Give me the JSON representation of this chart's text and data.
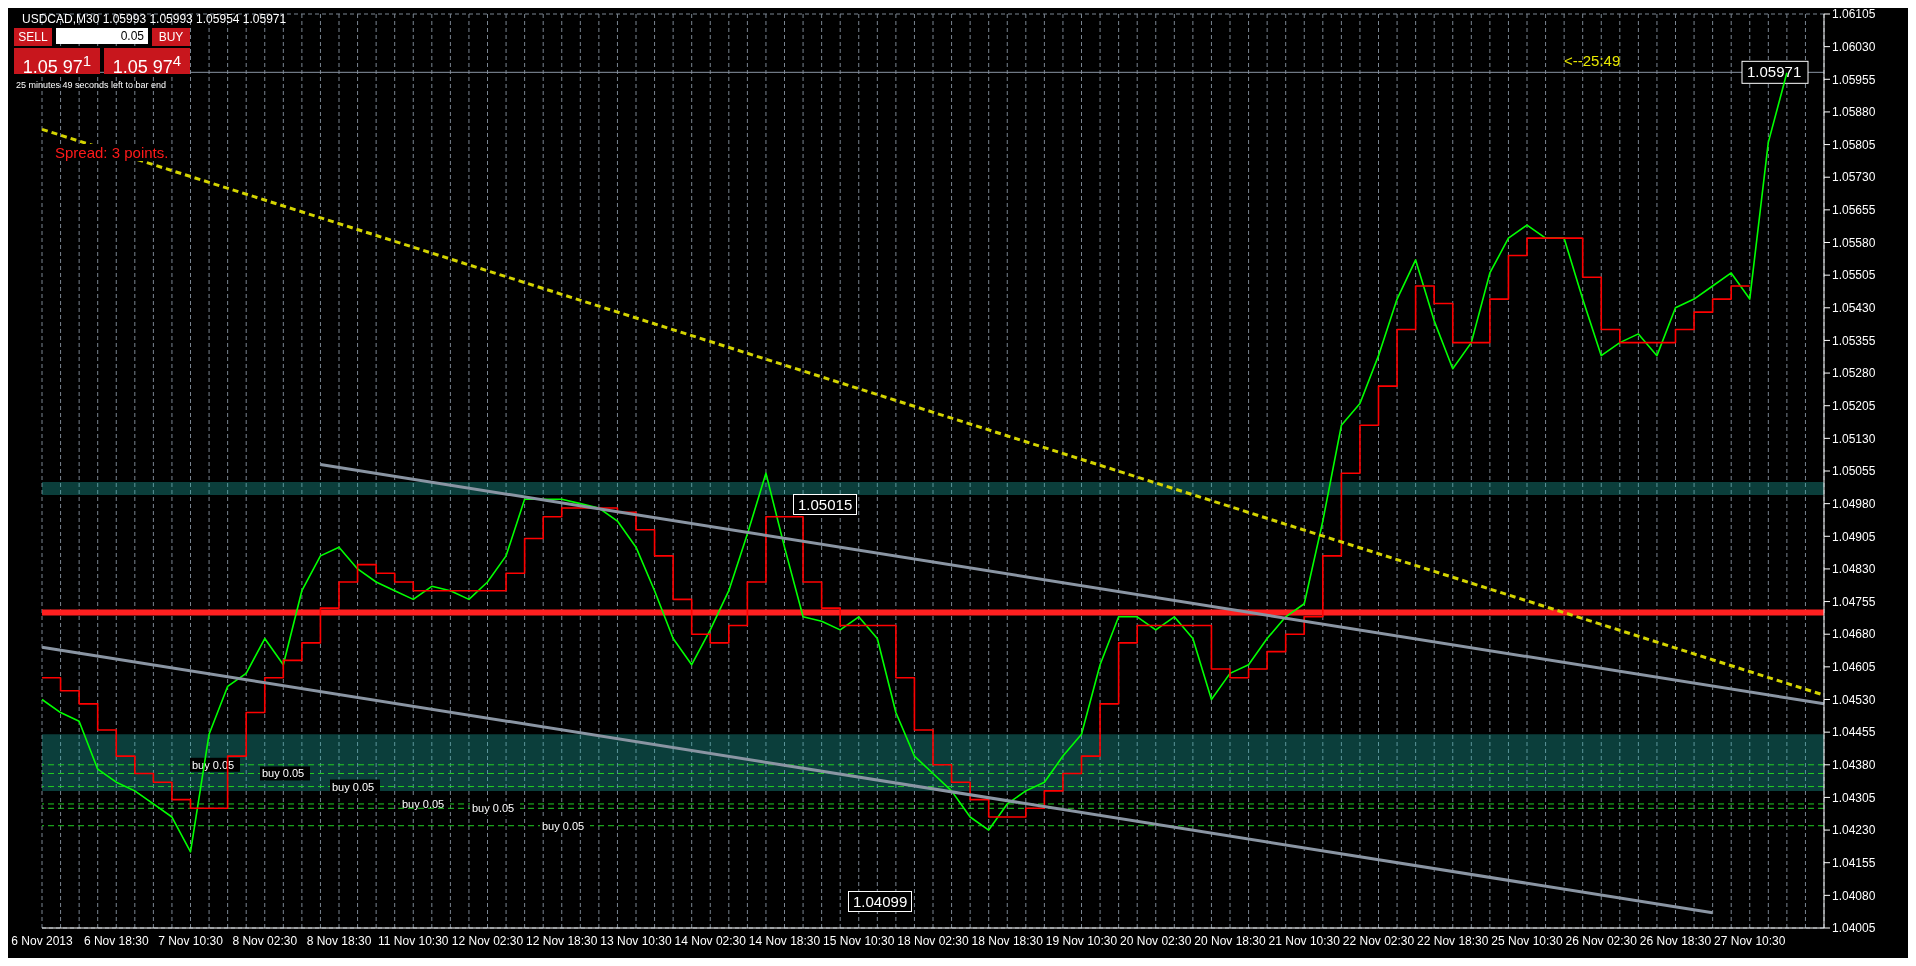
{
  "chart_data": {
    "type": "line",
    "title": "USDCAD,M30  1.05993 1.05993 1.05954 1.05971",
    "categories": [
      "6 Nov 2013",
      null,
      null,
      null,
      "6 Nov 18:30",
      null,
      null,
      null,
      "7 Nov 10:30",
      null,
      null,
      null,
      "8 Nov 02:30",
      null,
      null,
      null,
      "8 Nov 18:30",
      null,
      null,
      null,
      "11 Nov 10:30",
      null,
      null,
      null,
      "12 Nov 02:30",
      null,
      null,
      null,
      "12 Nov 18:30",
      null,
      null,
      null,
      "13 Nov 10:30",
      null,
      null,
      null,
      "14 Nov 02:30",
      null,
      null,
      null,
      "14 Nov 18:30",
      null,
      null,
      null,
      "15 Nov 10:30",
      null,
      null,
      null,
      "18 Nov 02:30",
      null,
      null,
      null,
      "18 Nov 18:30",
      null,
      null,
      null,
      "19 Nov 10:30",
      null,
      null,
      null,
      "20 Nov 02:30",
      null,
      null,
      null,
      "20 Nov 18:30",
      null,
      null,
      null,
      "21 Nov 10:30",
      null,
      null,
      null,
      "22 Nov 02:30",
      null,
      null,
      null,
      "22 Nov 18:30",
      null,
      null,
      null,
      "25 Nov 10:30",
      null,
      null,
      null,
      "26 Nov 02:30",
      null,
      null,
      null,
      "26 Nov 18:30",
      null,
      null,
      null,
      "27 Nov 10:30",
      null,
      null,
      null,
      null
    ],
    "series": [
      {
        "color": "#00ff00",
        "values": [
          1.0453,
          1.045,
          1.0448,
          1.0437,
          1.0434,
          1.0432,
          1.0429,
          1.0426,
          1.0418,
          1.0445,
          1.0456,
          1.0459,
          1.0467,
          1.0461,
          1.0478,
          1.0486,
          1.0488,
          1.0483,
          1.048,
          1.0478,
          1.0476,
          1.0479,
          1.0478,
          1.0476,
          1.048,
          1.0486,
          1.0499,
          1.0499,
          1.0499,
          1.0498,
          1.0497,
          1.0494,
          1.0488,
          1.0478,
          1.0467,
          1.0461,
          1.0469,
          1.0478,
          1.0491,
          1.0505,
          1.0488,
          1.0472,
          1.0471,
          1.0469,
          1.0472,
          1.0467,
          1.045,
          1.044,
          1.0436,
          1.0432,
          1.0426,
          1.0423,
          1.0429,
          1.0432,
          1.0434,
          1.044,
          1.0445,
          1.0461,
          1.0472,
          1.0472,
          1.0469,
          1.0472,
          1.0467,
          1.0453,
          1.0459,
          1.0461,
          1.0467,
          1.0472,
          1.0475,
          1.0494,
          1.0516,
          1.0521,
          1.0532,
          1.0545,
          1.0554,
          1.054,
          1.0529,
          1.0535,
          1.0551,
          1.0559,
          1.0562,
          1.0559,
          1.0559,
          1.0545,
          1.0532,
          1.0535,
          1.0537,
          1.0532,
          1.0543,
          1.0545,
          1.0548,
          1.0551,
          1.0545,
          1.0581,
          1.0597,
          null,
          null
        ]
      },
      {
        "type": "step",
        "color": "#ff0000",
        "values": [
          1.0458,
          1.0455,
          1.0452,
          1.0446,
          1.044,
          1.0436,
          1.0434,
          1.043,
          1.0428,
          1.0428,
          1.044,
          1.045,
          1.0458,
          1.0462,
          1.0466,
          1.0474,
          1.048,
          1.0484,
          1.0482,
          1.048,
          1.0478,
          1.0478,
          1.0478,
          1.0478,
          1.0478,
          1.0482,
          1.049,
          1.0495,
          1.0497,
          1.0497,
          1.0497,
          1.0496,
          1.0492,
          1.0486,
          1.0476,
          1.0468,
          1.0466,
          1.047,
          1.048,
          1.0495,
          1.0495,
          1.048,
          1.0474,
          1.047,
          1.047,
          1.047,
          1.0458,
          1.0446,
          1.0438,
          1.0434,
          1.043,
          1.0426,
          1.0426,
          1.0428,
          1.0432,
          1.0436,
          1.044,
          1.0452,
          1.0466,
          1.047,
          1.047,
          1.047,
          1.047,
          1.046,
          1.0458,
          1.046,
          1.0464,
          1.0468,
          1.0472,
          1.0486,
          1.0505,
          1.0516,
          1.0525,
          1.0538,
          1.0548,
          1.0544,
          1.0535,
          1.0535,
          1.0545,
          1.0555,
          1.0559,
          1.0559,
          1.0559,
          1.055,
          1.0538,
          1.0535,
          1.0535,
          1.0535,
          1.0538,
          1.0542,
          1.0545,
          1.0548,
          1.0548,
          null,
          null,
          null,
          null
        ]
      },
      {
        "color": "#8a95a3",
        "values": [
          null,
          null,
          null,
          null,
          null,
          null,
          null,
          null,
          null,
          null,
          null,
          null,
          null,
          null,
          null,
          1.0507,
          null,
          null,
          null,
          null,
          null,
          null,
          null,
          null,
          null,
          null,
          null,
          null,
          null,
          null,
          null,
          null,
          null,
          null,
          null,
          null,
          null,
          null,
          null,
          null,
          null,
          null,
          null,
          null,
          null,
          null,
          null,
          null,
          null,
          null,
          null,
          null,
          null,
          null,
          null,
          null,
          null,
          null,
          null,
          null,
          null,
          null,
          null,
          null,
          null,
          null,
          null,
          null,
          null,
          null,
          null,
          null,
          null,
          null,
          null,
          null,
          null,
          null,
          null,
          null,
          null,
          null,
          null,
          null,
          null,
          null,
          null,
          null,
          null,
          null,
          null,
          null,
          null,
          null,
          null,
          null,
          1.0452
        ]
      },
      {
        "color": "#8a95a3",
        "values": [
          1.0465,
          null,
          null,
          null,
          null,
          null,
          null,
          null,
          null,
          null,
          null,
          null,
          null,
          null,
          null,
          null,
          null,
          null,
          null,
          null,
          null,
          null,
          null,
          null,
          null,
          null,
          null,
          null,
          null,
          null,
          null,
          null,
          null,
          null,
          null,
          null,
          null,
          null,
          null,
          null,
          null,
          null,
          null,
          null,
          null,
          null,
          null,
          null,
          null,
          null,
          null,
          null,
          null,
          null,
          null,
          null,
          null,
          null,
          null,
          null,
          null,
          null,
          null,
          null,
          null,
          null,
          null,
          null,
          null,
          null,
          null,
          null,
          null,
          null,
          null,
          null,
          null,
          null,
          null,
          null,
          null,
          null,
          null,
          null,
          null,
          null,
          null,
          null,
          null,
          null,
          1.0404,
          null,
          null,
          null,
          null,
          null,
          null
        ]
      },
      {
        "color": "#d4d400",
        "line_style": "dashed",
        "values": [
          1.0584,
          null,
          null,
          null,
          null,
          null,
          null,
          null,
          null,
          null,
          null,
          null,
          null,
          null,
          null,
          null,
          null,
          null,
          null,
          null,
          null,
          null,
          null,
          null,
          null,
          null,
          null,
          null,
          null,
          null,
          null,
          null,
          null,
          null,
          null,
          null,
          null,
          null,
          null,
          null,
          null,
          null,
          null,
          null,
          null,
          null,
          null,
          null,
          null,
          null,
          null,
          null,
          null,
          null,
          null,
          null,
          null,
          null,
          null,
          null,
          null,
          null,
          null,
          null,
          null,
          null,
          null,
          null,
          null,
          null,
          null,
          null,
          null,
          null,
          null,
          null,
          null,
          null,
          null,
          null,
          null,
          null,
          null,
          null,
          null,
          null,
          null,
          null,
          null,
          null,
          null,
          null,
          null,
          null,
          null,
          null,
          1.0454
        ]
      }
    ],
    "ylim": [
      1.04005,
      1.06105
    ],
    "yticks": [
      {
        "value": 1.04005,
        "label": "1.04005"
      },
      {
        "value": 1.0408,
        "label": "1.04080"
      },
      {
        "value": 1.04155,
        "label": "1.04155"
      },
      {
        "value": 1.0423,
        "label": "1.04230"
      },
      {
        "value": 1.04305,
        "label": "1.04305"
      },
      {
        "value": 1.0438,
        "label": "1.04380"
      },
      {
        "value": 1.04455,
        "label": "1.04455"
      },
      {
        "value": 1.0453,
        "label": "1.04530"
      },
      {
        "value": 1.04605,
        "label": "1.04605"
      },
      {
        "value": 1.0468,
        "label": "1.04680"
      },
      {
        "value": 1.04755,
        "label": "1.04755"
      },
      {
        "value": 1.0483,
        "label": "1.04830"
      },
      {
        "value": 1.04905,
        "label": "1.04905"
      },
      {
        "value": 1.0498,
        "label": "1.04980"
      },
      {
        "value": 1.05055,
        "label": "1.05055"
      },
      {
        "value": 1.0513,
        "label": "1.05130"
      },
      {
        "value": 1.05205,
        "label": "1.05205"
      },
      {
        "value": 1.0528,
        "label": "1.05280"
      },
      {
        "value": 1.05355,
        "label": "1.05355"
      },
      {
        "value": 1.0543,
        "label": "1.05430"
      },
      {
        "value": 1.05505,
        "label": "1.05505"
      },
      {
        "value": 1.0558,
        "label": "1.05580"
      },
      {
        "value": 1.05655,
        "label": "1.05655"
      },
      {
        "value": 1.0573,
        "label": "1.05730"
      },
      {
        "value": 1.05805,
        "label": "1.05805"
      },
      {
        "value": 1.0588,
        "label": "1.05880"
      },
      {
        "value": 1.05955,
        "label": "1.05955"
      },
      {
        "value": 1.0603,
        "label": "1.06030"
      },
      {
        "value": 1.06105,
        "label": "1.06105"
      }
    ],
    "grid": true,
    "ref_lines": [
      {
        "axis": "y",
        "value": 1.05971,
        "label": "1.05971",
        "color": "#8a95a3"
      },
      {
        "axis": "y",
        "value": 1.0473,
        "color": "#ff2020"
      },
      {
        "axis": "y",
        "value": 1.0438,
        "label": "buy 0.05",
        "color": "#22cc22",
        "line_style": "dashed"
      },
      {
        "axis": "y",
        "value": 1.0436,
        "label": "buy 0.05",
        "color": "#22cc22",
        "line_style": "dashed"
      },
      {
        "axis": "y",
        "value": 1.0433,
        "label": "buy 0.05",
        "color": "#22cc22",
        "line_style": "dashed"
      },
      {
        "axis": "y",
        "value": 1.0429,
        "label": "buy 0.05",
        "color": "#22cc22",
        "line_style": "dashed"
      },
      {
        "axis": "y",
        "value": 1.0428,
        "label": "buy 0.05",
        "color": "#22cc22",
        "line_style": "dashed"
      },
      {
        "axis": "y",
        "value": 1.0424,
        "label": "buy 0.05",
        "color": "#22cc22",
        "line_style": "dashed"
      }
    ],
    "bands": [
      {
        "axis": "y",
        "from": 1.05,
        "to": 1.0503,
        "color": "#20b2aa"
      },
      {
        "axis": "y",
        "from": 1.0432,
        "to": 1.0445,
        "color": "#20b2aa"
      }
    ],
    "annotations": [
      "25 minutes 49 seconds left to bar end",
      "Spread: 3 points.",
      "<--25:49",
      "SELL",
      "0.05",
      "BUY",
      "1.05 97$^{1}$",
      "1.05 97$^{4}$",
      "1.05015",
      "1.04099"
    ]
  }
}
